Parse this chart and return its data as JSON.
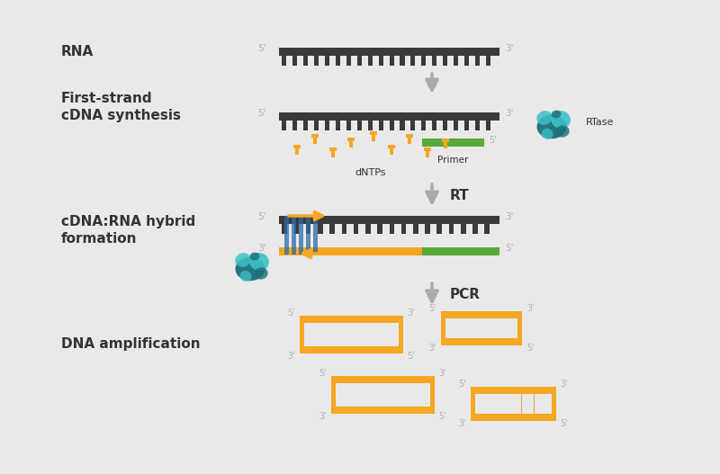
{
  "bg_color": "#e9e9e9",
  "dark_gray": "#3a3a3a",
  "orange": "#F5A623",
  "green": "#5aaa3a",
  "teal_dark": "#1a6e7a",
  "teal_light": "#3dc0c8",
  "blue_bar": "#2a6aaa",
  "arrow_gray": "#aaaaaa",
  "prime_color": "#b0b0b0",
  "label_color": "#333333",
  "white": "#ffffff",
  "labels": {
    "RNA": "RNA",
    "first_strand": "First-strand\ncDNA synthesis",
    "cdna_rna": "cDNA:RNA hybrid\nformation",
    "dna_amp": "DNA amplification",
    "dNTPs": "dNTPs",
    "Primer": "Primer",
    "RTase": "RTase",
    "RT": "RT",
    "PCR": "PCR"
  }
}
